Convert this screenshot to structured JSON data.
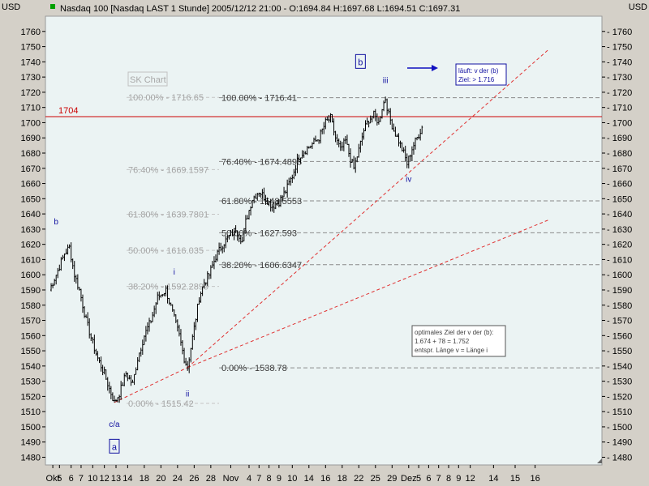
{
  "header": {
    "currency_left": "USD",
    "currency_right": "USD",
    "title": "Nasdaq 100 [Nasdaq LAST 1 Stunde] 2005/12/12 21:00 - O:1694.84 H:1697.68 L:1694.51 C:1697.31"
  },
  "colors": {
    "plot_bg": "#ebf3f3",
    "frame_bg": "#d4d0c8",
    "resistance": "#cc0000",
    "trend": "#e03030",
    "fib_line": "#8a8a8a",
    "wave_label": "#1010a0",
    "candle": "#000000"
  },
  "chart_data": {
    "type": "candlestick",
    "title": "Nasdaq 100 [Nasdaq LAST 1 Stunde] 2005/12/12 21:00 - O:1694.84 H:1697.68 L:1694.51 C:1697.31",
    "ylim": [
      1475,
      1768
    ],
    "yticks": [
      1480,
      1490,
      1500,
      1510,
      1520,
      1530,
      1540,
      1550,
      1560,
      1570,
      1580,
      1590,
      1600,
      1610,
      1620,
      1630,
      1640,
      1650,
      1660,
      1670,
      1680,
      1690,
      1700,
      1710,
      1720,
      1730,
      1740,
      1750,
      1760
    ],
    "x_ticks": [
      {
        "label": "Okt",
        "bar": 2
      },
      {
        "label": "5",
        "bar": 6
      },
      {
        "label": "6",
        "bar": 13
      },
      {
        "label": "7",
        "bar": 19
      },
      {
        "label": "10",
        "bar": 26
      },
      {
        "label": "12",
        "bar": 33
      },
      {
        "label": "13",
        "bar": 40
      },
      {
        "label": "14",
        "bar": 47
      },
      {
        "label": "18",
        "bar": 57
      },
      {
        "label": "20",
        "bar": 67
      },
      {
        "label": "24",
        "bar": 77
      },
      {
        "label": "26",
        "bar": 87
      },
      {
        "label": "28",
        "bar": 97
      },
      {
        "label": "Nov",
        "bar": 109
      },
      {
        "label": "4",
        "bar": 120
      },
      {
        "label": "7",
        "bar": 126
      },
      {
        "label": "8",
        "bar": 132
      },
      {
        "label": "9",
        "bar": 138
      },
      {
        "label": "10",
        "bar": 146
      },
      {
        "label": "14",
        "bar": 156
      },
      {
        "label": "16",
        "bar": 166
      },
      {
        "label": "18",
        "bar": 176
      },
      {
        "label": "22",
        "bar": 186
      },
      {
        "label": "25",
        "bar": 196
      },
      {
        "label": "29",
        "bar": 206
      },
      {
        "label": "Dez",
        "bar": 216
      },
      {
        "label": "5",
        "bar": 222
      },
      {
        "label": "6",
        "bar": 228
      },
      {
        "label": "7",
        "bar": 234
      },
      {
        "label": "8",
        "bar": 240
      },
      {
        "label": "9",
        "bar": 246
      },
      {
        "label": "12",
        "bar": 253
      },
      {
        "label": "14",
        "bar": 267
      },
      {
        "label": "15",
        "bar": 280
      },
      {
        "label": "16",
        "bar": 292
      }
    ],
    "path_anchors": [
      [
        0,
        1590
      ],
      [
        4,
        1600
      ],
      [
        9,
        1614
      ],
      [
        12,
        1618
      ],
      [
        15,
        1600
      ],
      [
        18,
        1590
      ],
      [
        22,
        1570
      ],
      [
        26,
        1555
      ],
      [
        29,
        1545
      ],
      [
        33,
        1535
      ],
      [
        36,
        1525
      ],
      [
        39,
        1516
      ],
      [
        42,
        1522
      ],
      [
        46,
        1535
      ],
      [
        50,
        1528
      ],
      [
        53,
        1545
      ],
      [
        57,
        1560
      ],
      [
        61,
        1570
      ],
      [
        65,
        1585
      ],
      [
        70,
        1590
      ],
      [
        74,
        1575
      ],
      [
        78,
        1560
      ],
      [
        81,
        1545
      ],
      [
        83,
        1539
      ],
      [
        87,
        1565
      ],
      [
        90,
        1585
      ],
      [
        93,
        1595
      ],
      [
        96,
        1600
      ],
      [
        100,
        1612
      ],
      [
        104,
        1620
      ],
      [
        108,
        1625
      ],
      [
        112,
        1630
      ],
      [
        116,
        1622
      ],
      [
        118,
        1635
      ],
      [
        122,
        1650
      ],
      [
        126,
        1655
      ],
      [
        130,
        1650
      ],
      [
        134,
        1645
      ],
      [
        138,
        1648
      ],
      [
        142,
        1655
      ],
      [
        146,
        1665
      ],
      [
        150,
        1678
      ],
      [
        154,
        1682
      ],
      [
        158,
        1686
      ],
      [
        162,
        1690
      ],
      [
        166,
        1700
      ],
      [
        169,
        1703
      ],
      [
        172,
        1690
      ],
      [
        175,
        1682
      ],
      [
        178,
        1688
      ],
      [
        181,
        1676
      ],
      [
        183,
        1670
      ],
      [
        186,
        1682
      ],
      [
        189,
        1695
      ],
      [
        192,
        1702
      ],
      [
        195,
        1705
      ],
      [
        198,
        1700
      ],
      [
        200,
        1710
      ],
      [
        202,
        1716
      ],
      [
        204,
        1705
      ],
      [
        207,
        1695
      ],
      [
        210,
        1688
      ],
      [
        213,
        1680
      ],
      [
        215,
        1673
      ],
      [
        218,
        1683
      ],
      [
        221,
        1690
      ],
      [
        224,
        1697
      ]
    ],
    "resistance": {
      "label": "1704",
      "value": 1704
    },
    "fib_levels_left": [
      {
        "label": "100.00% - 1716.65",
        "value": 1716.65
      },
      {
        "label": "76.40% - 1669.1597",
        "value": 1669.16
      },
      {
        "label": "61.80% - 1639.7801",
        "value": 1639.78
      },
      {
        "label": "50.00% - 1616.035",
        "value": 1616.035
      },
      {
        "label": "38.20% - 1592.2899",
        "value": 1592.29
      },
      {
        "label": "0.00% - 1515.42",
        "value": 1515.42
      }
    ],
    "fib_levels_right": [
      {
        "label": "100.00% - 1716.41",
        "value": 1716.41
      },
      {
        "label": "76.40% - 1674.4893",
        "value": 1674.49
      },
      {
        "label": "61.80% - 1648.5553",
        "value": 1648.56
      },
      {
        "label": "50.00% - 1627.593",
        "value": 1627.59
      },
      {
        "label": "38.20% - 1606.6347",
        "value": 1606.63
      },
      {
        "label": "0.00% - 1538.78",
        "value": 1538.78
      }
    ],
    "trendlines": [
      {
        "from": {
          "bar": 39,
          "value": 1516
        },
        "to": {
          "bar": 83,
          "value": 1539
        }
      },
      {
        "from": {
          "bar": 83,
          "value": 1539
        },
        "to": {
          "bar": 300,
          "value": 1748
        }
      },
      {
        "from": {
          "bar": 83,
          "value": 1539
        },
        "to": {
          "bar": 300,
          "value": 1636
        }
      }
    ],
    "wave_labels": [
      {
        "text": "b",
        "bar": 4,
        "value": 1633
      },
      {
        "text": "c/a",
        "bar": 39,
        "value": 1500
      },
      {
        "text": "i",
        "bar": 75,
        "value": 1600
      },
      {
        "text": "ii",
        "bar": 83,
        "value": 1520
      },
      {
        "text": "iii",
        "bar": 202,
        "value": 1726
      },
      {
        "text": "iv",
        "bar": 216,
        "value": 1661
      }
    ],
    "boxed_labels": [
      {
        "text": "a",
        "bar": 39,
        "value": 1487
      },
      {
        "text": "b",
        "bar": 187,
        "value": 1740
      }
    ],
    "watermark": "SK Chart",
    "note_target": {
      "lines": [
        "läuft: v der (b)",
        "Ziel: > 1.716"
      ]
    },
    "note_optimal": {
      "lines": [
        "optimales Ziel der v der (b):",
        "1.674 + 78 = 1.752",
        "entspr. Länge v = Länge i"
      ]
    }
  }
}
